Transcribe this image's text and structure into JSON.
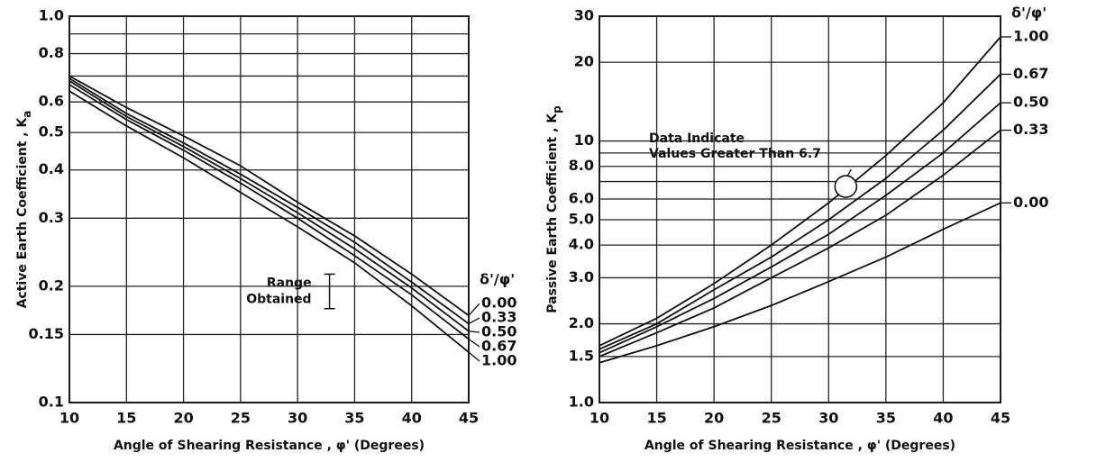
{
  "chart_data": [
    {
      "type": "line",
      "log_y": true,
      "grid": true,
      "xlabel": "Angle of Shearing Resistance , φ' (Degrees)",
      "ylabel": "Active    Earth    Coefficient , K",
      "ylabel_subscript": "a",
      "x": [
        10,
        15,
        20,
        25,
        30,
        35,
        40,
        45
      ],
      "xlim": [
        10,
        45
      ],
      "xticks": [
        10,
        15,
        20,
        25,
        30,
        35,
        40,
        45
      ],
      "ylim": [
        0.1,
        1
      ],
      "yticks": [
        0.1,
        0.15,
        0.2,
        0.3,
        0.4,
        0.5,
        0.6,
        0.8,
        {
          "value": 1,
          "label": "1.0"
        }
      ],
      "yminor": [
        0.7,
        0.9
      ],
      "legend_title": "δ'/φ'",
      "series": [
        {
          "name": "0.00",
          "color": "#111",
          "values": [
            0.7,
            0.58,
            0.49,
            0.41,
            0.33,
            0.27,
            0.215,
            0.168
          ]
        },
        {
          "name": "0.33",
          "color": "#111",
          "values": [
            0.69,
            0.56,
            0.47,
            0.39,
            0.32,
            0.26,
            0.205,
            0.16
          ]
        },
        {
          "name": "0.50",
          "color": "#111",
          "values": [
            0.68,
            0.55,
            0.46,
            0.38,
            0.31,
            0.25,
            0.198,
            0.153
          ]
        },
        {
          "name": "0.67",
          "color": "#111",
          "values": [
            0.665,
            0.54,
            0.45,
            0.37,
            0.3,
            0.24,
            0.19,
            0.146
          ]
        },
        {
          "name": "1.00",
          "color": "#111",
          "values": [
            0.64,
            0.52,
            0.43,
            0.35,
            0.285,
            0.23,
            0.178,
            0.135
          ]
        }
      ],
      "range": {
        "labels": [
          "Range",
          "Obtained"
        ],
        "x": 32.8,
        "values": [
          0.175,
          0.215
        ]
      }
    },
    {
      "type": "line",
      "log_y": true,
      "grid": true,
      "xlabel": "Angle of Shearing Resistance , φ' (Degrees)",
      "ylabel": "Passive    Earth    Coefficient , K",
      "ylabel_subscript": "p",
      "x": [
        10,
        15,
        20,
        25,
        30,
        35,
        40,
        45
      ],
      "xlim": [
        10,
        45
      ],
      "xticks": [
        10,
        15,
        20,
        25,
        30,
        35,
        40,
        45
      ],
      "ylim": [
        1,
        30
      ],
      "yticks": [
        {
          "value": 1,
          "label": "1.0"
        },
        1.5,
        {
          "value": 2,
          "label": "2.0"
        },
        {
          "value": 3,
          "label": "3.0"
        },
        {
          "value": 4,
          "label": "4.0"
        },
        {
          "value": 5,
          "label": "5.0"
        },
        {
          "value": 6,
          "label": "6.0"
        },
        {
          "value": 8,
          "label": "8.0"
        },
        10,
        20,
        30
      ],
      "yminor": [
        7,
        9
      ],
      "legend_title": "δ'/φ'",
      "series": [
        {
          "name": "1.00",
          "color": "#111",
          "values": [
            1.65,
            2.1,
            2.85,
            4.0,
            5.8,
            8.8,
            14,
            25
          ]
        },
        {
          "name": "0.67",
          "color": "#111",
          "values": [
            1.6,
            2.0,
            2.7,
            3.6,
            5.0,
            7.2,
            11,
            18
          ]
        },
        {
          "name": "0.50",
          "color": "#111",
          "values": [
            1.55,
            1.95,
            2.5,
            3.3,
            4.4,
            6.2,
            9.0,
            14
          ]
        },
        {
          "name": "0.33",
          "color": "#111",
          "values": [
            1.5,
            1.85,
            2.3,
            3.0,
            3.9,
            5.2,
            7.4,
            11
          ]
        },
        {
          "name": "0.00",
          "color": "#111",
          "values": [
            1.42,
            1.65,
            1.95,
            2.35,
            2.9,
            3.6,
            4.6,
            5.8
          ]
        }
      ],
      "annotation": {
        "lines": [
          "Data  Indicate",
          "Values Greater Than 6.7"
        ],
        "x": 31.5,
        "y": 6.7
      }
    }
  ]
}
